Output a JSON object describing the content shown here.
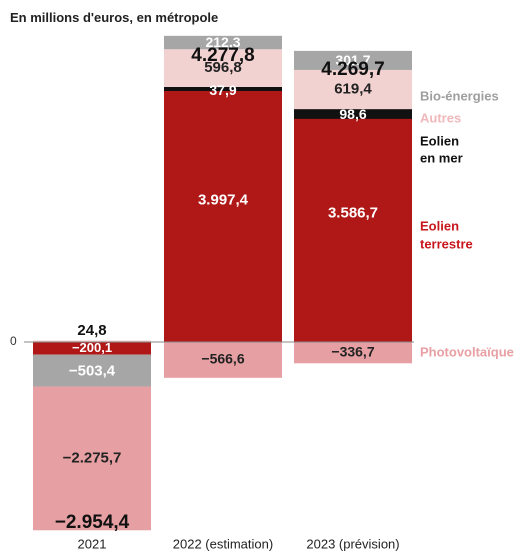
{
  "chart_data": {
    "type": "bar",
    "stacked": true,
    "subtitle": "En millions d'euros, en métropole",
    "zero_label": "0",
    "categories": [
      "2021",
      "2022 (estimation)",
      "2023 (prévision)"
    ],
    "totals": [
      "−2.954,4",
      "4.277,8",
      "4.269,7"
    ],
    "series": [
      {
        "name": "Bio-énergies",
        "color": "#a6a6a6",
        "label_color": "#9e9e9e",
        "values": [
          -503.4,
          212.3,
          301.7
        ],
        "labels": [
          "−503,4",
          "212,3",
          "301,7"
        ]
      },
      {
        "name": "Autres",
        "color": "#f2d1d1",
        "label_color": "#f0b8bb",
        "values": [
          24.8,
          596.8,
          619.4
        ],
        "labels": [
          "24,8",
          "596,8",
          "619,4"
        ]
      },
      {
        "name": "Eolien en mer",
        "name_lines": [
          "Eolien",
          "en mer"
        ],
        "color": "#111111",
        "label_color": "#111111",
        "values": [
          0,
          37.9,
          98.6
        ],
        "labels": [
          "",
          "37,9",
          "98,6"
        ]
      },
      {
        "name": "Eolien terrestre",
        "name_lines": [
          "Eolien",
          "terrestre"
        ],
        "color": "#b01818",
        "label_color": "#c8161d",
        "values": [
          -200.1,
          3997.4,
          3586.7
        ],
        "labels": [
          "−200,1",
          "3.997,4",
          "3.586,7"
        ]
      },
      {
        "name": "Photovoltaïque",
        "color": "#e6a0a3",
        "label_color": "#e8a0a5",
        "values": [
          -2275.7,
          -566.6,
          -336.7
        ],
        "labels": [
          "−2.275,7",
          "−566,6",
          "−336,7"
        ]
      }
    ]
  }
}
